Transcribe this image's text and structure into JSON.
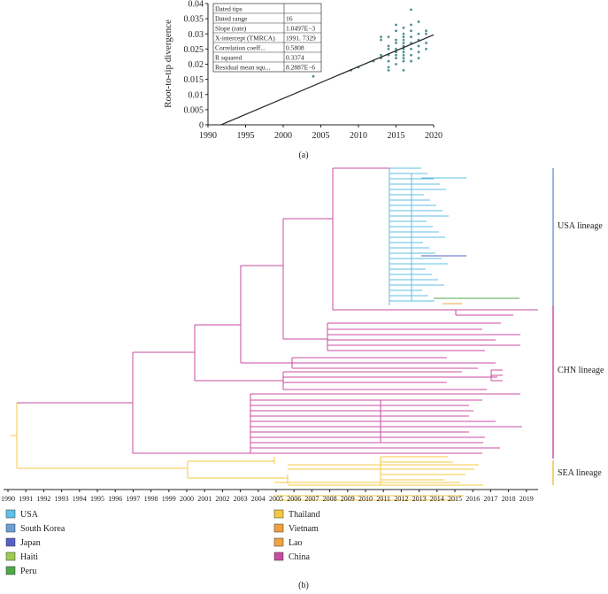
{
  "chart_data": [
    {
      "type": "scatter",
      "panel_label": "(a)",
      "title": "",
      "xlabel": "",
      "ylabel": "Root-to-tip divergence",
      "xlim": [
        1990,
        2020
      ],
      "ylim": [
        0,
        0.04
      ],
      "x_ticks": [
        "1990",
        "1995",
        "2000",
        "2005",
        "2010",
        "2015",
        "2020"
      ],
      "y_ticks": [
        "0",
        "0.005",
        "0.01",
        "0.015",
        "0.02",
        "0.025",
        "0.03",
        "0.035",
        "0.04"
      ],
      "regression_line": {
        "x": [
          1991.73,
          2020
        ],
        "y": [
          0,
          0.0297
        ]
      },
      "points": [
        {
          "x": 2004,
          "y": 0.016
        },
        {
          "x": 2009,
          "y": 0.018
        },
        {
          "x": 2010,
          "y": 0.019
        },
        {
          "x": 2012,
          "y": 0.021
        },
        {
          "x": 2013,
          "y": 0.023
        },
        {
          "x": 2013,
          "y": 0.028
        },
        {
          "x": 2013,
          "y": 0.029
        },
        {
          "x": 2013,
          "y": 0.022
        },
        {
          "x": 2014,
          "y": 0.018
        },
        {
          "x": 2014,
          "y": 0.019
        },
        {
          "x": 2014,
          "y": 0.021
        },
        {
          "x": 2014,
          "y": 0.023
        },
        {
          "x": 2014,
          "y": 0.025
        },
        {
          "x": 2014,
          "y": 0.026
        },
        {
          "x": 2014,
          "y": 0.029
        },
        {
          "x": 2015,
          "y": 0.02
        },
        {
          "x": 2015,
          "y": 0.022
        },
        {
          "x": 2015,
          "y": 0.023
        },
        {
          "x": 2015,
          "y": 0.024
        },
        {
          "x": 2015,
          "y": 0.025
        },
        {
          "x": 2015,
          "y": 0.027
        },
        {
          "x": 2015,
          "y": 0.028
        },
        {
          "x": 2015,
          "y": 0.031
        },
        {
          "x": 2015,
          "y": 0.033
        },
        {
          "x": 2016,
          "y": 0.018
        },
        {
          "x": 2016,
          "y": 0.021
        },
        {
          "x": 2016,
          "y": 0.022
        },
        {
          "x": 2016,
          "y": 0.023
        },
        {
          "x": 2016,
          "y": 0.024
        },
        {
          "x": 2016,
          "y": 0.025
        },
        {
          "x": 2016,
          "y": 0.026
        },
        {
          "x": 2016,
          "y": 0.027
        },
        {
          "x": 2016,
          "y": 0.028
        },
        {
          "x": 2016,
          "y": 0.029
        },
        {
          "x": 2016,
          "y": 0.03
        },
        {
          "x": 2016,
          "y": 0.032
        },
        {
          "x": 2017,
          "y": 0.021
        },
        {
          "x": 2017,
          "y": 0.023
        },
        {
          "x": 2017,
          "y": 0.025
        },
        {
          "x": 2017,
          "y": 0.027
        },
        {
          "x": 2017,
          "y": 0.029
        },
        {
          "x": 2017,
          "y": 0.031
        },
        {
          "x": 2017,
          "y": 0.033
        },
        {
          "x": 2017,
          "y": 0.038
        },
        {
          "x": 2018,
          "y": 0.022
        },
        {
          "x": 2018,
          "y": 0.024
        },
        {
          "x": 2018,
          "y": 0.026
        },
        {
          "x": 2018,
          "y": 0.028
        },
        {
          "x": 2018,
          "y": 0.03
        },
        {
          "x": 2018,
          "y": 0.034
        },
        {
          "x": 2019,
          "y": 0.025
        },
        {
          "x": 2019,
          "y": 0.027
        },
        {
          "x": 2019,
          "y": 0.03
        },
        {
          "x": 2019,
          "y": 0.031
        }
      ],
      "stats_table": [
        [
          "Dated tips",
          ""
        ],
        [
          "Dated range",
          "16"
        ],
        [
          "Slope (rate)",
          "1.0497E−3"
        ],
        [
          "X-intercept (TMRCA)",
          "1991. 7329"
        ],
        [
          "Correlation coeff...",
          "0.5808"
        ],
        [
          "R squared",
          "0.3374"
        ],
        [
          "Residual mean squ...",
          "8.2887E−6"
        ]
      ]
    },
    {
      "type": "phylogenetic_tree",
      "panel_label": "(b)",
      "x_ticks": [
        "1990",
        "1991",
        "1992",
        "1993",
        "1994",
        "1995",
        "1996",
        "1997",
        "1998",
        "1999",
        "2000",
        "2001",
        "2002",
        "2003",
        "2004",
        "2005",
        "2006",
        "2007",
        "2008",
        "2009",
        "2010",
        "2011",
        "2012",
        "2013",
        "2014",
        "2015",
        "2016",
        "2017",
        "2018",
        "2019"
      ],
      "lineages": [
        {
          "name": "USA lineage",
          "color": "#6aa0d8"
        },
        {
          "name": "CHN lineage",
          "color": "#c850a8"
        },
        {
          "name": "SEA lineage",
          "color": "#f2c43a"
        }
      ],
      "legend": [
        {
          "label": "USA",
          "color": "#5fbfe6"
        },
        {
          "label": "South Korea",
          "color": "#6a9fd6"
        },
        {
          "label": "Japan",
          "color": "#5560c8"
        },
        {
          "label": "Haiti",
          "color": "#9ccc52"
        },
        {
          "label": "Peru",
          "color": "#4ea84a"
        },
        {
          "label": "Thailand",
          "color": "#f5c842"
        },
        {
          "label": "Vietnam",
          "color": "#f0a040"
        },
        {
          "label": "Lao",
          "color": "#f0a440"
        },
        {
          "label": "China",
          "color": "#c84ca0"
        }
      ]
    }
  ]
}
